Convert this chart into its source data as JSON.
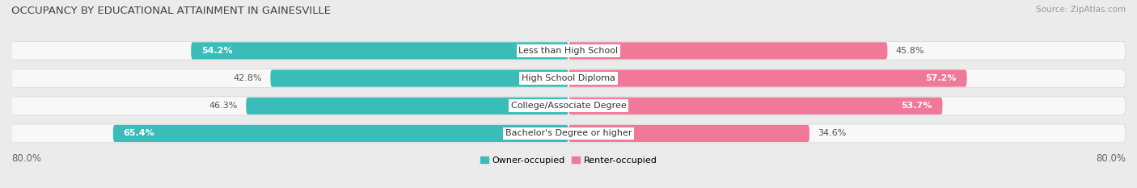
{
  "title": "OCCUPANCY BY EDUCATIONAL ATTAINMENT IN GAINESVILLE",
  "source": "Source: ZipAtlas.com",
  "categories": [
    "Less than High School",
    "High School Diploma",
    "College/Associate Degree",
    "Bachelor's Degree or higher"
  ],
  "owner_values": [
    54.2,
    42.8,
    46.3,
    65.4
  ],
  "renter_values": [
    45.8,
    57.2,
    53.7,
    34.6
  ],
  "owner_color": "#3abcb8",
  "renter_color": "#f07898",
  "owner_label": "Owner-occupied",
  "renter_label": "Renter-occupied",
  "max_val": 80.0,
  "background_color": "#ebebeb",
  "bar_background": "#f8f8f8",
  "bar_shadow": "#d8d8d8",
  "title_fontsize": 9.5,
  "source_fontsize": 7.5,
  "label_fontsize": 8,
  "value_fontsize": 8,
  "tick_fontsize": 8.5
}
